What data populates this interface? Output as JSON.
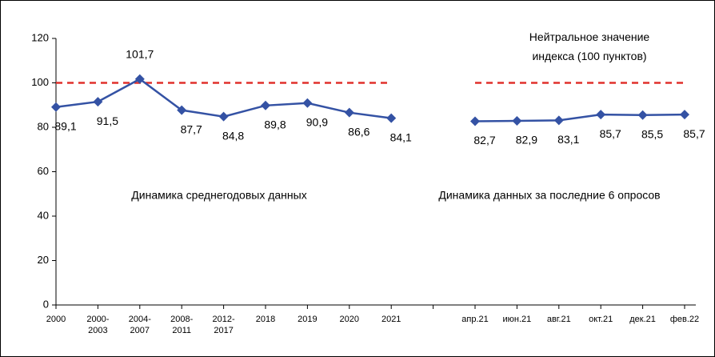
{
  "chart_data": {
    "type": "line",
    "categories": [
      "2000",
      "2000-\n2003",
      "2004-\n2007",
      "2008-\n2011",
      "2012-\n2017",
      "2018",
      "2019",
      "2020",
      "2021",
      null,
      "апр.21",
      "июн.21",
      "авг.21",
      "окт.21",
      "дек.21",
      "фев.22"
    ],
    "series": [
      {
        "color": "#3452a4",
        "values": [
          89.1,
          91.5,
          101.7,
          87.7,
          84.8,
          89.8,
          90.9,
          86.6,
          84.1,
          null,
          82.7,
          82.9,
          83.1,
          85.7,
          85.5,
          85.7
        ],
        "value_labels": [
          "89,1",
          "91,5",
          "101,7",
          "87,7",
          "84,8",
          "89,8",
          "90,9",
          "86,6",
          "84,1",
          null,
          "82,7",
          "82,9",
          "83,1",
          "85,7",
          "85,5",
          "85,7"
        ]
      }
    ],
    "reference_line": {
      "value": 100,
      "color": "#e0302c"
    },
    "ylim": [
      0,
      120
    ],
    "yticks": [
      0,
      20,
      40,
      60,
      80,
      100,
      120
    ],
    "annotations": [
      "Нейтральное значение\nиндекса (100 пунктов)",
      "Динамика среднегодовых данных",
      "Динамика данных за последние 6 опросов"
    ]
  }
}
